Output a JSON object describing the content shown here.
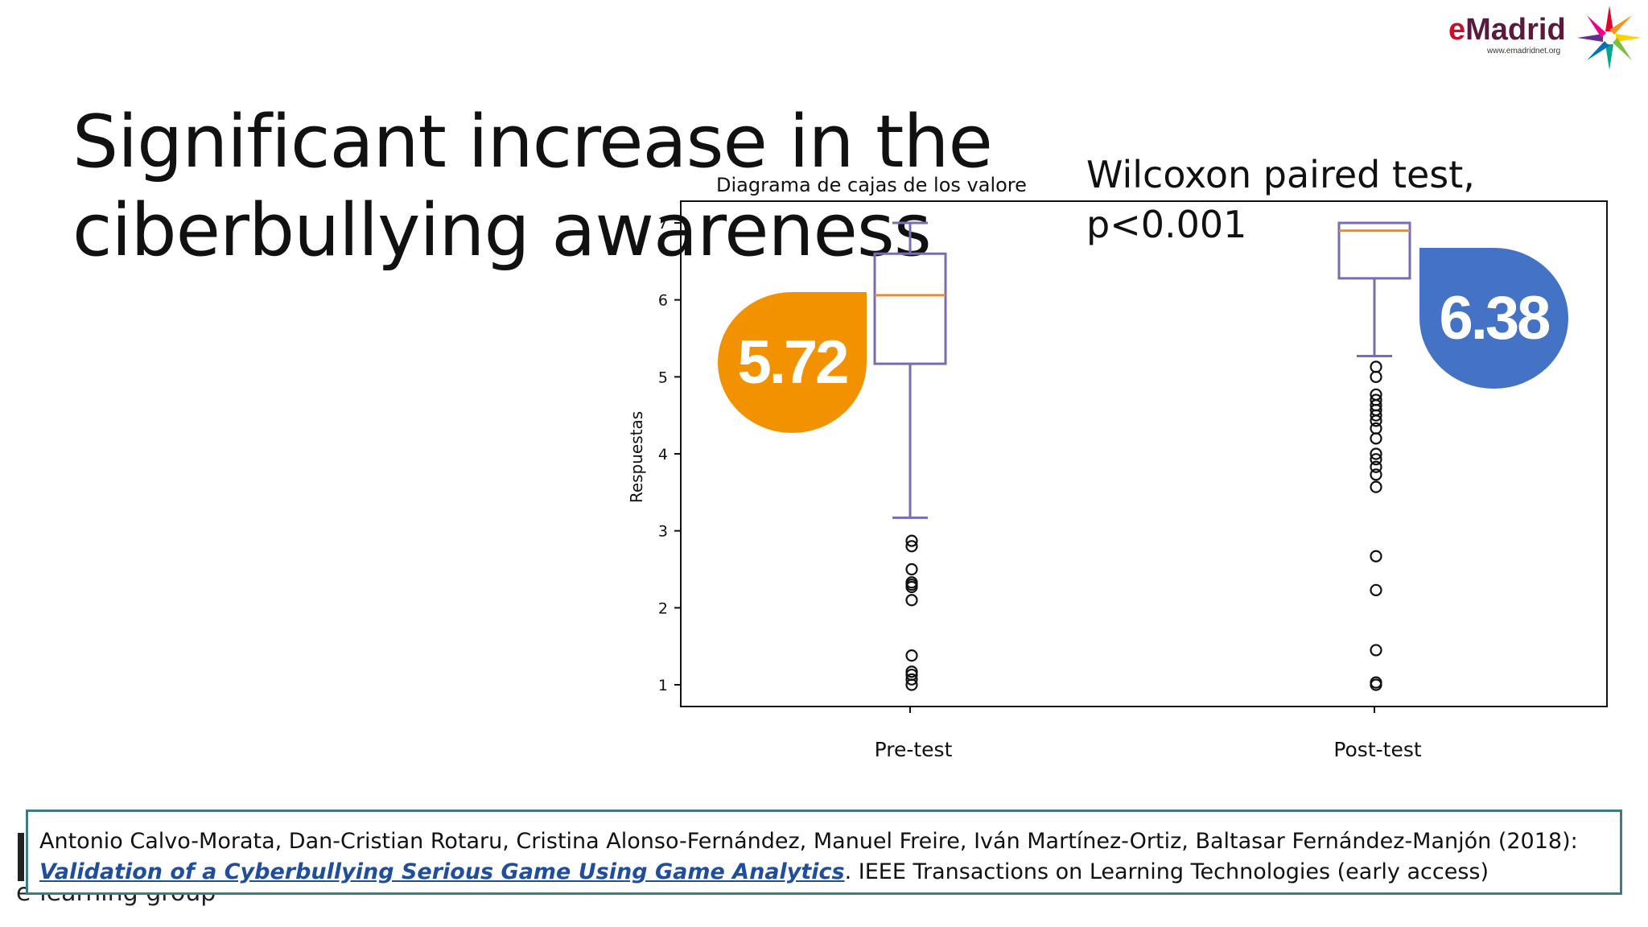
{
  "slide": {
    "title": "Significant increase in the ciberbullying awareness",
    "logo_text_e": "e",
    "logo_text_rest": "Madrid",
    "logo_url": "www.emadridnet.org",
    "stat_note": "Wilcoxon paired test, p<0.001",
    "citation_authors": "Antonio Calvo-Morata, Dan-Cristian Rotaru, Cristina Alonso-Fernández, Manuel Freire, Iván Martínez-Ortiz, Baltasar Fernández-Manjón (2018):",
    "citation_link": "Validation of a Cyberbullying Serious Game Using Game Analytics",
    "citation_rest": ". IEEE Transactions on Learning Technologies (early access)",
    "footer_text": "e-learning group"
  },
  "badges": {
    "pre": "5.72",
    "post": "6.38",
    "pre_color": "#f39200",
    "post_color": "#4472c4"
  },
  "chart_data": {
    "type": "box",
    "title": "Diagrama de cajas de los valore",
    "ylabel": "Respuestas",
    "ylim": [
      0.8,
      7.3
    ],
    "yticks": [
      1,
      2,
      3,
      4,
      5,
      6,
      7
    ],
    "categories": [
      "Pre-test",
      "Post-test"
    ],
    "box_color": "#7b6bb0",
    "median_color": "#f08a24",
    "boxes": [
      {
        "name": "Pre-test",
        "whisker_low": 3.17,
        "q1": 5.17,
        "median": 6.06,
        "q3": 6.6,
        "whisker_high": 7.0,
        "outliers": [
          2.87,
          2.8,
          2.5,
          2.33,
          2.3,
          2.27,
          2.1,
          1.38,
          1.17,
          1.13,
          1.07,
          1.0
        ]
      },
      {
        "name": "Post-test",
        "whisker_low": 5.27,
        "q1": 6.28,
        "median": 6.9,
        "q3": 7.0,
        "whisker_high": 7.0,
        "outliers": [
          5.13,
          5.0,
          4.77,
          4.7,
          4.63,
          4.57,
          4.5,
          4.43,
          4.33,
          4.2,
          4.0,
          3.93,
          3.83,
          3.73,
          3.57,
          2.67,
          2.23,
          1.45,
          1.03,
          1.0
        ]
      }
    ]
  }
}
